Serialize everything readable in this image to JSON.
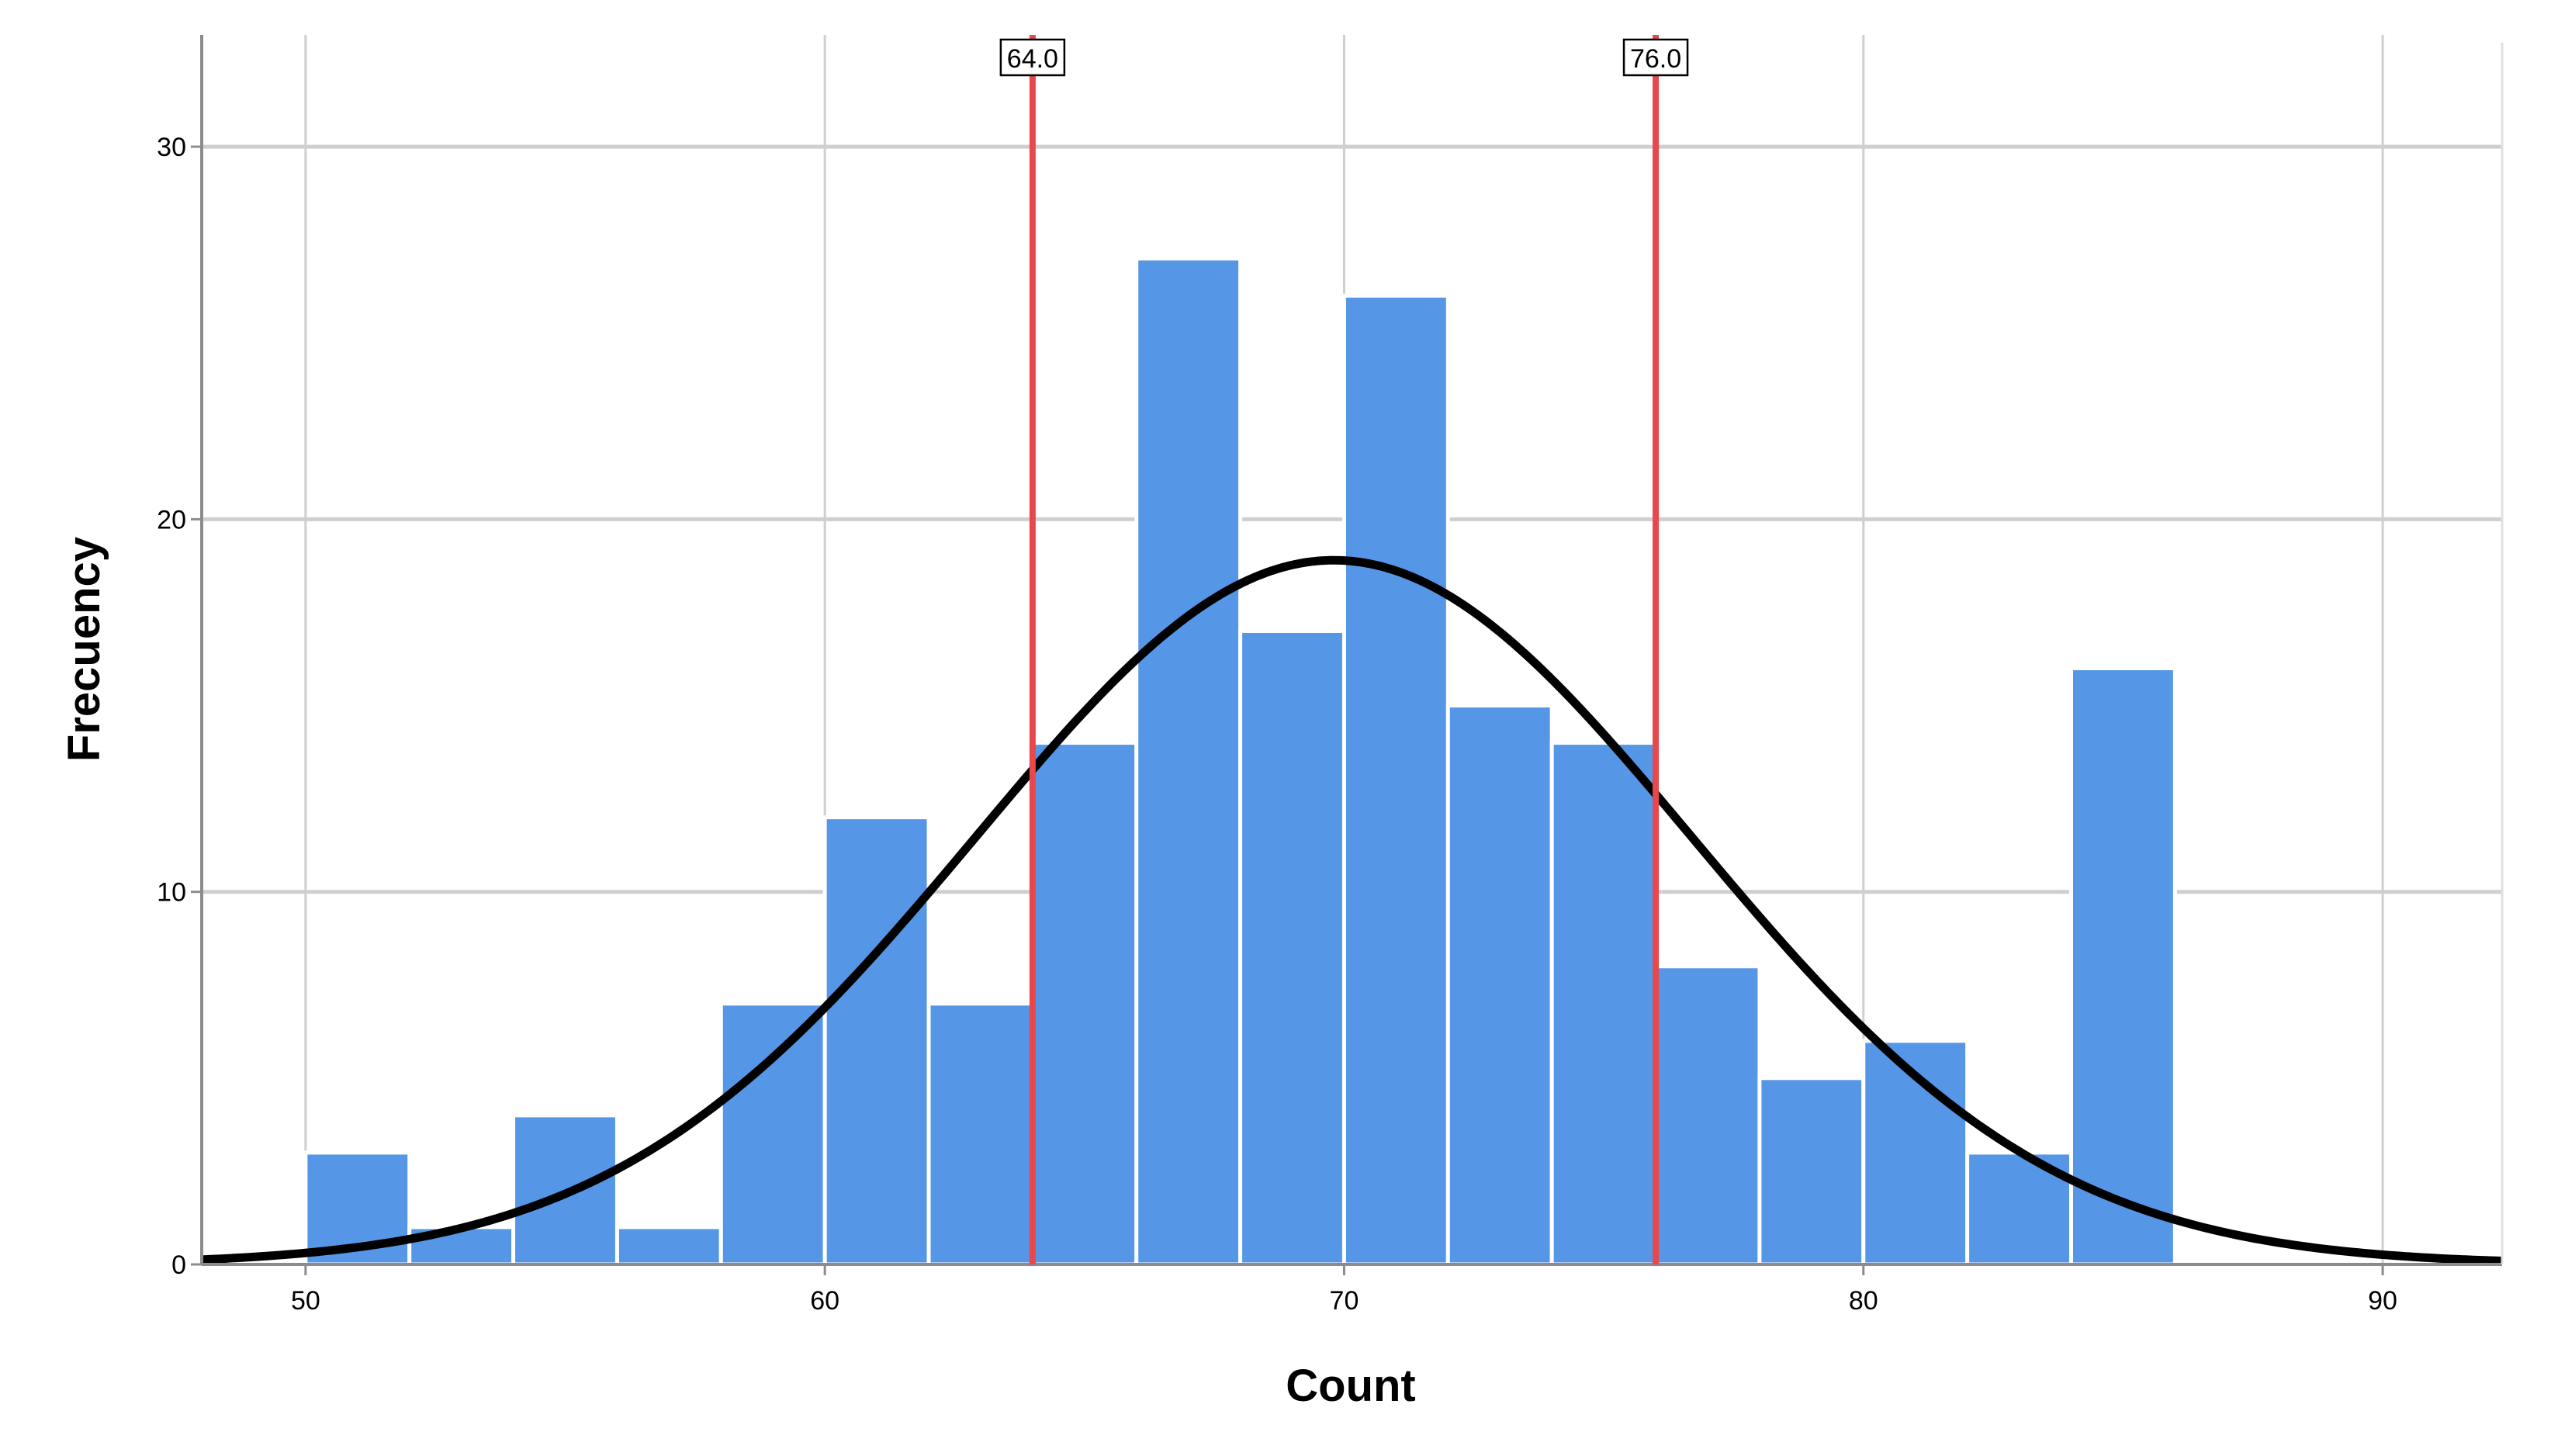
{
  "chart_data": {
    "type": "bar",
    "subtype": "histogram",
    "title": "",
    "xlabel": "Count",
    "ylabel": "Frecuency",
    "xlim": [
      48,
      92.3
    ],
    "ylim": [
      0,
      33
    ],
    "x_ticks": [
      50,
      60,
      70,
      80,
      90
    ],
    "y_ticks": [
      0,
      10,
      20,
      30
    ],
    "grid": true,
    "legend": "none",
    "bins": [
      {
        "start": 50,
        "end": 52,
        "count": 3
      },
      {
        "start": 52,
        "end": 54,
        "count": 1
      },
      {
        "start": 54,
        "end": 56,
        "count": 4
      },
      {
        "start": 56,
        "end": 58,
        "count": 1
      },
      {
        "start": 58,
        "end": 60,
        "count": 7
      },
      {
        "start": 60,
        "end": 62,
        "count": 12
      },
      {
        "start": 62,
        "end": 64,
        "count": 7
      },
      {
        "start": 64,
        "end": 66,
        "count": 14
      },
      {
        "start": 66,
        "end": 68,
        "count": 27
      },
      {
        "start": 68,
        "end": 70,
        "count": 17
      },
      {
        "start": 70,
        "end": 72,
        "count": 26
      },
      {
        "start": 72,
        "end": 74,
        "count": 15
      },
      {
        "start": 74,
        "end": 76,
        "count": 14
      },
      {
        "start": 76,
        "end": 78,
        "count": 8
      },
      {
        "start": 78,
        "end": 80,
        "count": 5
      },
      {
        "start": 80,
        "end": 82,
        "count": 6
      },
      {
        "start": 82,
        "end": 84,
        "count": 3
      },
      {
        "start": 84,
        "end": 86,
        "count": 16
      }
    ],
    "normal_curve": {
      "mean": 69.8,
      "sd": 6.9,
      "peak": 18.9
    },
    "reference_lines": [
      {
        "x": 64.0,
        "label": "64.0"
      },
      {
        "x": 76.0,
        "label": "76.0"
      }
    ],
    "colors": {
      "bar_fill": "#5596e6",
      "bar_stroke": "#ffffff",
      "curve": "#000000",
      "reference_line": "#e8474b",
      "grid": "#cfcfcf",
      "axis": "#8c8c8c"
    }
  }
}
